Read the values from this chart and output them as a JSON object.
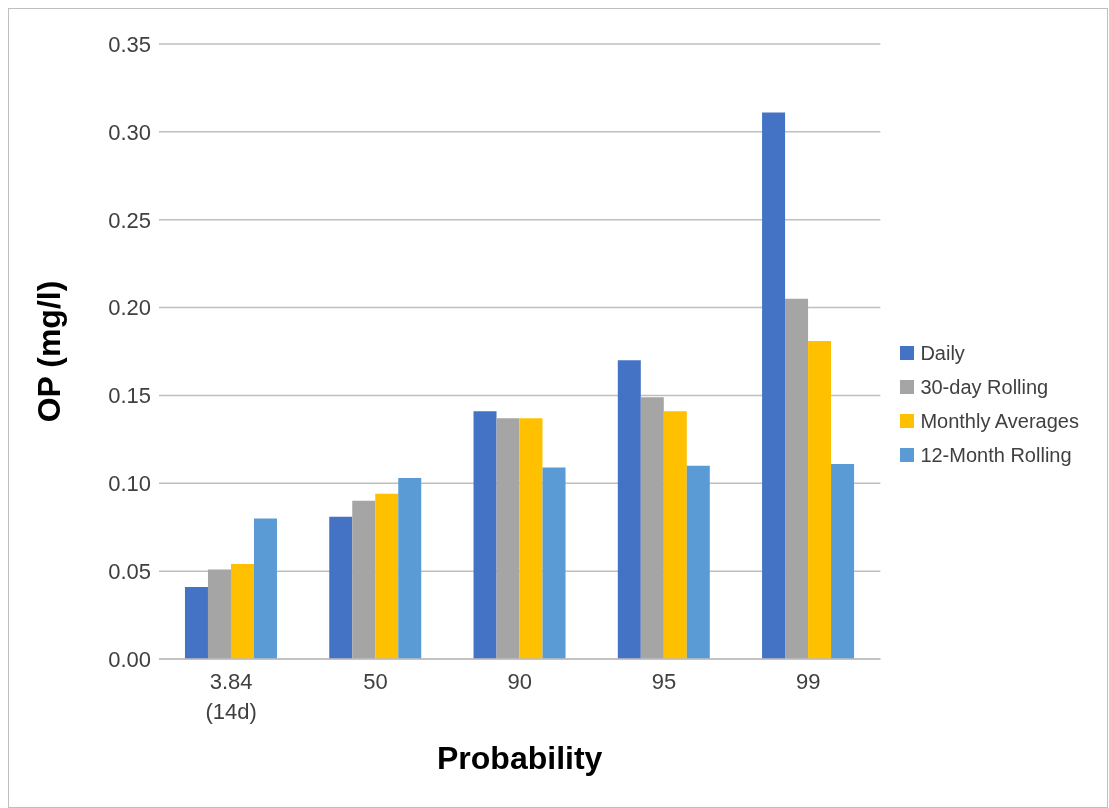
{
  "chart_data": {
    "type": "bar",
    "xlabel": "Probability",
    "ylabel": "OP (mg/l)",
    "categories": [
      "3.84\n(14d)",
      "50",
      "90",
      "95",
      "99"
    ],
    "series": [
      {
        "name": "Daily",
        "color": "#4472c4",
        "values": [
          0.041,
          0.081,
          0.141,
          0.17,
          0.311
        ]
      },
      {
        "name": "30-day Rolling",
        "color": "#a5a5a5",
        "values": [
          0.051,
          0.09,
          0.137,
          0.149,
          0.205
        ]
      },
      {
        "name": "Monthly Averages",
        "color": "#ffc000",
        "values": [
          0.054,
          0.094,
          0.137,
          0.141,
          0.181
        ]
      },
      {
        "name": "12-Month Rolling",
        "color": "#5b9bd5",
        "values": [
          0.08,
          0.103,
          0.109,
          0.11,
          0.111
        ]
      }
    ],
    "ylim": [
      0,
      0.35
    ],
    "yticks": [
      {
        "value": 0,
        "label": "0.00"
      },
      {
        "value": 0.05,
        "label": "0.05"
      },
      {
        "value": 0.1,
        "label": "0.10"
      },
      {
        "value": 0.15,
        "label": "0.15"
      },
      {
        "value": 0.2,
        "label": "0.20"
      },
      {
        "value": 0.25,
        "label": "0.25"
      },
      {
        "value": 0.3,
        "label": "0.30"
      },
      {
        "value": 0.35,
        "label": "0.35"
      }
    ],
    "grid": "y",
    "legend": "right"
  }
}
